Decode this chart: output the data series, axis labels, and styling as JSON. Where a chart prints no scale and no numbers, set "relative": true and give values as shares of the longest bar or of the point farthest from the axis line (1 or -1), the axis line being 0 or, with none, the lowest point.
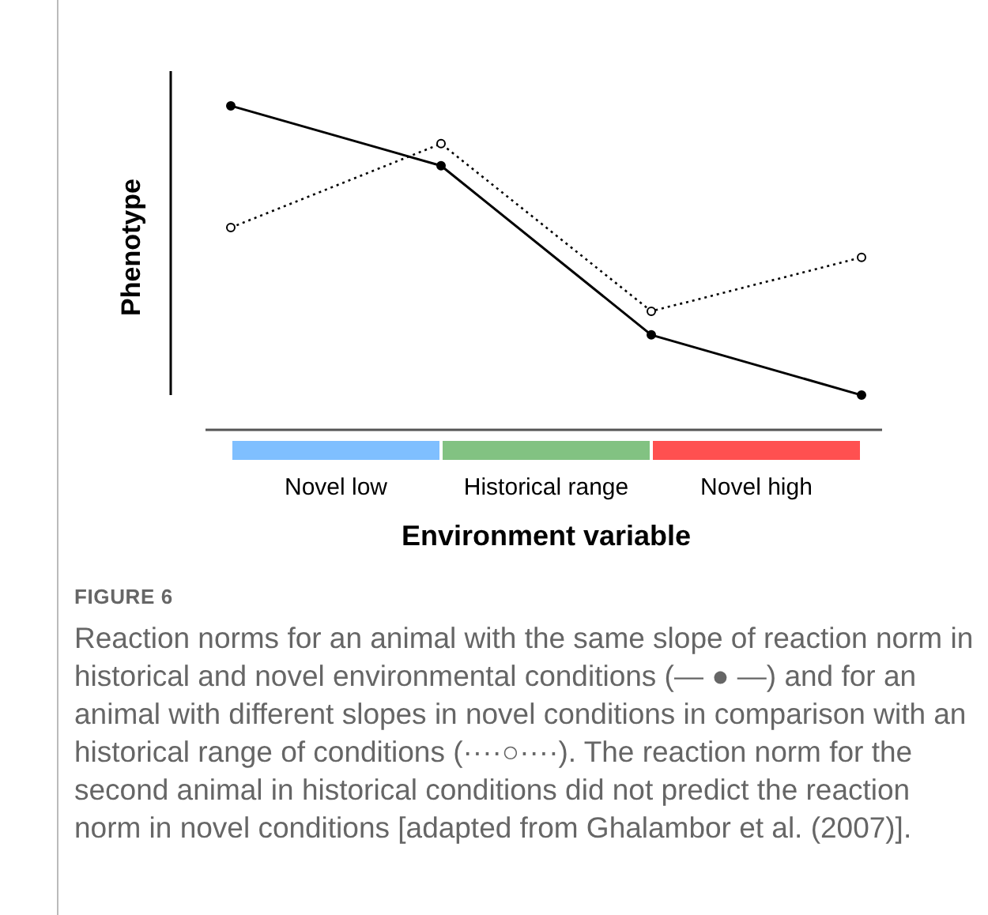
{
  "chart_data": {
    "type": "line",
    "xlabel": "Environment variable",
    "ylabel": "Phenotype",
    "relative": true,
    "categories": [
      null,
      null,
      null,
      null
    ],
    "tick_labels": false,
    "legend": false,
    "marker": "circle",
    "series": [
      {
        "color": "#000000",
        "line_style": "solid",
        "values": [
          1,
          0.815,
          0.293,
          0.107
        ]
      },
      {
        "color": "#000000",
        "line_style": "dotted",
        "values": [
          0.624,
          0.883,
          0.366,
          0.532
        ]
      }
    ],
    "annotations": [
      "Novel low",
      "Historical range",
      "Novel high",
      "FIGURE 6",
      "Reaction norms for an animal with the same slope of reaction norm in historical and novel environmental conditions (— ● —) and for an animal with different slopes in novel conditions in comparison with an historical range of conditions (····○····). The reaction norm for the second animal in historical conditions did not predict the reaction norm in novel conditions [adapted from Ghalambor et al. (2007)]."
    ]
  }
}
